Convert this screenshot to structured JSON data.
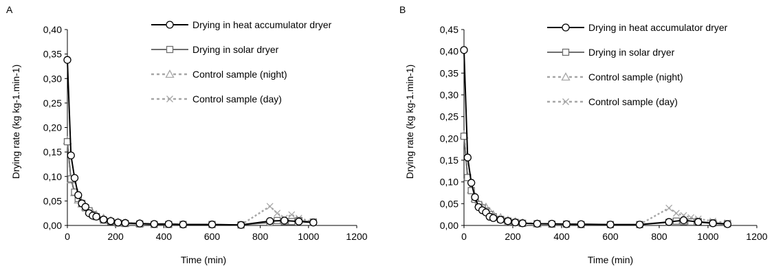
{
  "chart_data": [
    {
      "panel_label": "A",
      "type": "line",
      "xlabel": "Time (min)",
      "ylabel": "Drying rate (kg kg-1.min-1)",
      "xlim": [
        0,
        1200
      ],
      "ylim": [
        0,
        0.4
      ],
      "x_ticks": [
        "0",
        "200",
        "400",
        "600",
        "800",
        "1000",
        "1200"
      ],
      "y_ticks": [
        "0,00",
        "0,05",
        "0,10",
        "0,15",
        "0,20",
        "0,25",
        "0,30",
        "0,35",
        "0,40"
      ],
      "grid": false,
      "legend_position": "top-right",
      "series": [
        {
          "name": "Drying in heat accumulator dryer",
          "color": "#000000",
          "marker": "circle",
          "dashed": false,
          "x": [
            0,
            15,
            30,
            45,
            60,
            75,
            90,
            105,
            120,
            150,
            180,
            210,
            240,
            300,
            360,
            420,
            480,
            600,
            720,
            840,
            900,
            960,
            1020
          ],
          "y": [
            0.338,
            0.143,
            0.097,
            0.062,
            0.045,
            0.038,
            0.025,
            0.02,
            0.018,
            0.012,
            0.009,
            0.006,
            0.005,
            0.004,
            0.003,
            0.003,
            0.002,
            0.002,
            0.001,
            0.009,
            0.01,
            0.008,
            0.006
          ]
        },
        {
          "name": "Drying in solar dryer",
          "color": "#6e6e6e",
          "marker": "square",
          "dashed": false,
          "x": [
            0,
            15,
            30,
            45,
            60,
            75,
            90,
            105,
            120,
            150,
            180,
            210,
            240,
            300,
            360,
            420,
            480,
            600,
            720,
            840,
            870,
            900,
            930,
            960,
            1020
          ],
          "y": [
            0.171,
            0.095,
            0.068,
            0.055,
            0.045,
            0.036,
            0.03,
            0.022,
            0.018,
            0.011,
            0.008,
            0.005,
            0.004,
            0.003,
            0.002,
            0.002,
            0.002,
            0.002,
            0.001,
            0.006,
            0.01,
            0.008,
            0.008,
            0.01,
            0.007
          ]
        },
        {
          "name": "Control sample (night)",
          "color": "#a6a6a6",
          "marker": "triangle",
          "dashed": true,
          "x": [
            0,
            15,
            30,
            45,
            60,
            75,
            90,
            105,
            120,
            150,
            180,
            210,
            240,
            300
          ],
          "y": [
            0.173,
            0.093,
            0.067,
            0.052,
            0.044,
            0.038,
            0.03,
            0.025,
            0.022,
            0.015,
            0.01,
            0.007,
            0.005,
            0.004
          ]
        },
        {
          "name": "Control sample (day)",
          "color": "#a6a6a6",
          "marker": "x",
          "dashed": true,
          "x": [
            720,
            840,
            870,
            900,
            930,
            960,
            1020
          ],
          "y": [
            0.001,
            0.039,
            0.025,
            0.015,
            0.022,
            0.015,
            0.007
          ]
        }
      ]
    },
    {
      "panel_label": "B",
      "type": "line",
      "xlabel": "Time (min)",
      "ylabel": "Drying rate (kg kg-1.min-1)",
      "xlim": [
        0,
        1200
      ],
      "ylim": [
        0,
        0.45
      ],
      "x_ticks": [
        "0",
        "200",
        "400",
        "600",
        "800",
        "1000",
        "1200"
      ],
      "y_ticks": [
        "0,00",
        "0,05",
        "0,10",
        "0,15",
        "0,20",
        "0,25",
        "0,30",
        "0,35",
        "0,40",
        "0,45"
      ],
      "grid": false,
      "legend_position": "top-right",
      "series": [
        {
          "name": "Drying in heat accumulator dryer",
          "color": "#000000",
          "marker": "circle",
          "dashed": false,
          "x": [
            0,
            15,
            30,
            45,
            60,
            75,
            90,
            105,
            120,
            150,
            180,
            210,
            240,
            300,
            360,
            420,
            480,
            600,
            720,
            840,
            900,
            960,
            1020,
            1080
          ],
          "y": [
            0.403,
            0.156,
            0.098,
            0.065,
            0.042,
            0.035,
            0.03,
            0.02,
            0.017,
            0.013,
            0.01,
            0.007,
            0.005,
            0.004,
            0.004,
            0.003,
            0.003,
            0.002,
            0.002,
            0.008,
            0.012,
            0.008,
            0.005,
            0.003
          ]
        },
        {
          "name": "Drying in solar dryer",
          "color": "#6e6e6e",
          "marker": "square",
          "dashed": false,
          "x": [
            0,
            15,
            30,
            45,
            60,
            75,
            90,
            105,
            120,
            150,
            180,
            210,
            240,
            300,
            360,
            420,
            480,
            600,
            720,
            840,
            870,
            900,
            930,
            960,
            1020,
            1080
          ],
          "y": [
            0.205,
            0.11,
            0.08,
            0.06,
            0.048,
            0.04,
            0.033,
            0.025,
            0.02,
            0.014,
            0.01,
            0.007,
            0.005,
            0.004,
            0.003,
            0.003,
            0.002,
            0.002,
            0.002,
            0.007,
            0.01,
            0.009,
            0.008,
            0.009,
            0.006,
            0.004
          ]
        },
        {
          "name": "Control sample (night)",
          "color": "#a6a6a6",
          "marker": "triangle",
          "dashed": true,
          "x": [
            0,
            15,
            30,
            45,
            60,
            75,
            90,
            105,
            120,
            150,
            180,
            210,
            240,
            300
          ],
          "y": [
            0.208,
            0.112,
            0.082,
            0.062,
            0.05,
            0.043,
            0.042,
            0.032,
            0.025,
            0.018,
            0.012,
            0.009,
            0.006,
            0.004
          ]
        },
        {
          "name": "Control sample (day)",
          "color": "#a6a6a6",
          "marker": "x",
          "dashed": true,
          "x": [
            720,
            840,
            870,
            900,
            930,
            960,
            1020,
            1080
          ],
          "y": [
            0.002,
            0.04,
            0.028,
            0.023,
            0.018,
            0.015,
            0.01,
            0.006
          ]
        }
      ]
    }
  ]
}
